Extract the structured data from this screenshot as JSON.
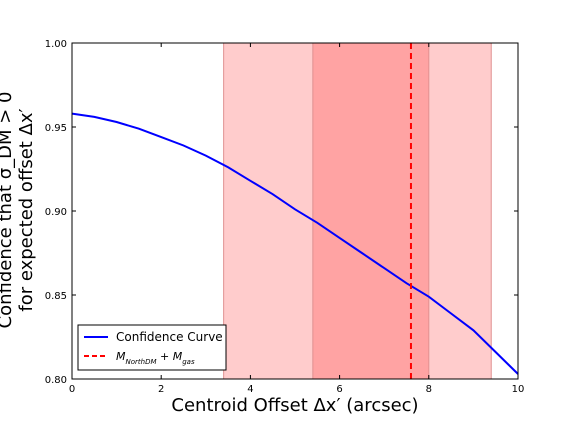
{
  "chart_data": {
    "type": "line",
    "xlabel": "Centroid Offset Δx′ (arcsec)",
    "ylabel_line1": "Confidence that σ_DM > 0",
    "ylabel_line2": "for expected offset Δx′",
    "xlim": [
      0,
      10
    ],
    "ylim": [
      0.8,
      1.0
    ],
    "x_ticks": [
      "0",
      "2",
      "4",
      "6",
      "8",
      "10"
    ],
    "y_ticks": [
      "0.80",
      "0.85",
      "0.90",
      "0.95",
      "1.00"
    ],
    "grid": false,
    "legend_position": "lower-left",
    "series": [
      {
        "name": "Confidence Curve",
        "color": "#0000ff",
        "x": [
          0,
          0.5,
          1,
          1.5,
          2,
          2.5,
          3,
          3.5,
          4,
          4.5,
          5,
          5.5,
          6,
          6.5,
          7,
          7.5,
          8,
          8.5,
          9,
          9.5,
          10
        ],
        "y": [
          0.958,
          0.956,
          0.953,
          0.949,
          0.944,
          0.939,
          0.933,
          0.926,
          0.918,
          0.91,
          0.901,
          0.893,
          0.884,
          0.875,
          0.866,
          0.857,
          0.849,
          0.839,
          0.829,
          0.816,
          0.803
        ]
      }
    ],
    "reference_line": {
      "name": "M_NorthDM + M_gas",
      "x": 7.6,
      "color": "#ff0000",
      "style": "dashed"
    },
    "bands": [
      {
        "xmin": 3.4,
        "xmax": 9.4,
        "color": "#ffcccc",
        "label": "outer"
      },
      {
        "xmin": 5.4,
        "xmax": 8.0,
        "color": "#ffa3a3",
        "label": "inner"
      }
    ]
  },
  "legend": {
    "items": [
      {
        "label": "Confidence Curve",
        "style": "solid",
        "color": "#0000ff"
      },
      {
        "label": "M_NorthDM+M_gas",
        "style": "dashed",
        "color": "#ff0000"
      }
    ]
  }
}
